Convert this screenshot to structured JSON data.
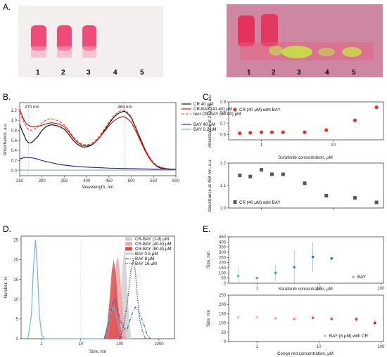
{
  "panels": {
    "A": {
      "letter": "A.",
      "left_gel": {
        "lanes": [
          "1",
          "2",
          "3",
          "4",
          "5"
        ],
        "colors": {
          "background": "#f2eeee",
          "band": "#f0386c"
        }
      },
      "right_gel": {
        "lanes": [
          "1",
          "2",
          "3",
          "4",
          "5"
        ],
        "colors": {
          "background": "#d98fa8",
          "band": "#e8254f",
          "spot": "#c6e842"
        }
      }
    },
    "B": {
      "letter": "B.",
      "annotations": [
        "270 nm",
        "484 nm"
      ],
      "chart_data": {
        "type": "line",
        "xlabel": "Wavelength, nm",
        "ylabel": "Absorbance, a.u.",
        "xlim": [
          250,
          600
        ],
        "ylim": [
          -0.1,
          1.35
        ],
        "xticks": [
          "250",
          "300",
          "350",
          "400",
          "450",
          "500",
          "550",
          "600"
        ],
        "yticks": [
          "0.0",
          "0.2",
          "0.4",
          "0.6",
          "0.8",
          "1.0",
          "1.2"
        ],
        "series": [
          {
            "name": "CR 40 μM",
            "color": "#000000",
            "dash": "solid",
            "x": [
              250,
              255,
              260,
              265,
              270,
              275,
              280,
              290,
              300,
              310,
              320,
              330,
              340,
              350,
              360,
              370,
              380,
              390,
              400,
              410,
              420,
              430,
              440,
              450,
              460,
              470,
              480,
              484,
              490,
              500,
              510,
              520,
              530,
              540,
              550,
              560,
              570,
              580,
              590,
              600
            ],
            "y": [
              0.92,
              0.8,
              0.7,
              0.6,
              0.55,
              0.55,
              0.58,
              0.67,
              0.8,
              0.88,
              0.91,
              0.9,
              0.87,
              0.82,
              0.72,
              0.6,
              0.52,
              0.47,
              0.47,
              0.5,
              0.57,
              0.67,
              0.8,
              0.93,
              1.05,
              1.13,
              1.17,
              1.18,
              1.15,
              1.05,
              0.85,
              0.64,
              0.43,
              0.26,
              0.14,
              0.07,
              0.04,
              0.03,
              0.02,
              0.02
            ]
          },
          {
            "name": "CR-BAY (40-40) μM",
            "color": "#d00000",
            "dash": "solid",
            "x": [
              250,
              255,
              260,
              265,
              270,
              275,
              280,
              290,
              300,
              310,
              320,
              330,
              340,
              350,
              360,
              370,
              380,
              390,
              400,
              410,
              420,
              430,
              440,
              450,
              460,
              470,
              480,
              484,
              490,
              500,
              510,
              520,
              530,
              540,
              550,
              560,
              570,
              580,
              590,
              600
            ],
            "y": [
              1.22,
              1.1,
              1.0,
              0.93,
              0.9,
              0.88,
              0.87,
              0.88,
              0.9,
              0.93,
              0.95,
              0.94,
              0.92,
              0.87,
              0.77,
              0.65,
              0.56,
              0.5,
              0.49,
              0.51,
              0.57,
              0.67,
              0.78,
              0.89,
              0.98,
              1.04,
              1.07,
              1.07,
              1.04,
              0.96,
              0.79,
              0.6,
              0.41,
              0.25,
              0.14,
              0.08,
              0.05,
              0.04,
              0.03,
              0.03
            ]
          },
          {
            "name": "teor CR-BAY (40-40) μM",
            "color": "#e8452a",
            "dash": "dashed",
            "x": [
              250,
              255,
              260,
              265,
              270,
              275,
              280,
              290,
              300,
              310,
              320,
              330,
              340,
              350,
              360,
              370,
              380,
              390,
              400,
              410,
              420,
              430,
              440,
              450,
              460,
              470,
              480,
              484,
              490,
              500,
              510,
              520,
              530,
              540,
              550,
              560,
              570,
              580,
              590,
              600
            ],
            "y": [
              1.16,
              1.05,
              0.95,
              0.86,
              0.81,
              0.8,
              0.81,
              0.86,
              0.95,
              1.01,
              1.03,
              1.01,
              0.97,
              0.91,
              0.8,
              0.67,
              0.58,
              0.52,
              0.51,
              0.53,
              0.6,
              0.7,
              0.83,
              0.96,
              1.08,
              1.16,
              1.2,
              1.2,
              1.17,
              1.07,
              0.87,
              0.66,
              0.45,
              0.28,
              0.16,
              0.09,
              0.06,
              0.04,
              0.03,
              0.03
            ]
          },
          {
            "name": "BAY 40 μM",
            "color": "#1a1aa8",
            "dash": "solid",
            "x": [
              250,
              260,
              270,
              280,
              290,
              300,
              320,
              340,
              360,
              380,
              400,
              450,
              500,
              550,
              600
            ],
            "y": [
              0.23,
              0.26,
              0.26,
              0.25,
              0.23,
              0.2,
              0.16,
              0.12,
              0.1,
              0.08,
              0.07,
              0.05,
              0.04,
              0.03,
              0.03
            ]
          },
          {
            "name": "BAY 0.2 μM",
            "color": "#7da6d6",
            "dash": "solid",
            "x": [
              250,
              300,
              400,
              500,
              600
            ],
            "y": [
              0.01,
              0.01,
              0.01,
              0.01,
              0.01
            ]
          }
        ]
      }
    },
    "C": {
      "letter": "C.",
      "xlabel": "Sorafenib concentration, μM",
      "x_tick_labels": [
        "1",
        "10"
      ],
      "chart_data": [
        {
          "type": "scatter",
          "ylabel": "Absorbance at 270 nm, a.u.",
          "ylim": [
            0.55,
            0.9
          ],
          "yticks": [
            "0.6",
            "0.7",
            "0.8",
            "0.9"
          ],
          "xscale": "log",
          "xlim": [
            0.35,
            50
          ],
          "series": [
            {
              "name": "CR (40 μM) with BAY",
              "color": "#e8302a",
              "x": [
                0.5,
                0.7,
                1,
                1.4,
                2,
                4,
                8,
                20,
                40
              ],
              "y": [
                0.61,
                0.615,
                0.62,
                0.62,
                0.62,
                0.62,
                0.64,
                0.73,
                0.85
              ]
            }
          ]
        },
        {
          "type": "scatter",
          "ylabel": "Absorbance at 484 nm, a.u.",
          "ylim": [
            1.0,
            1.2
          ],
          "yticks": [
            "1.0",
            "1.1",
            "1.2"
          ],
          "xscale": "log",
          "xlim": [
            0.35,
            50
          ],
          "series": [
            {
              "name": "CR (40 μM) with BAY",
              "color": "#555555",
              "x": [
                0.5,
                0.7,
                1,
                1.4,
                2,
                4,
                8,
                20,
                40
              ],
              "y": [
                1.145,
                1.14,
                1.17,
                1.15,
                1.15,
                1.11,
                1.055,
                1.045,
                1.025
              ]
            }
          ]
        }
      ]
    },
    "D": {
      "letter": "D.",
      "chart_data": {
        "type": "line",
        "xlabel": "Size, nm",
        "ylabel": "Number, %",
        "xscale": "log",
        "xlim": [
          0.3,
          2500
        ],
        "ylim": [
          0,
          26
        ],
        "xticks": [
          "1",
          "10",
          "100",
          "1000"
        ],
        "yticks": [
          "0",
          "5",
          "10",
          "15",
          "20",
          "25"
        ],
        "series": [
          {
            "name": "CR-BAY (1-8) μM",
            "color": "#cfcfcf",
            "fill": true,
            "x": [
              70,
              85,
              100,
              115,
              130,
              145,
              160,
              180,
              200
            ],
            "y": [
              0,
              3,
              9,
              17,
              23,
              19,
              10,
              3,
              0
            ]
          },
          {
            "name": "CR-BAY (40-8) μM",
            "color": "#f0a4a4",
            "fill": true,
            "x": [
              50,
              60,
              70,
              80,
              90,
              100,
              115,
              130,
              150
            ],
            "y": [
              0,
              4,
              11,
              19,
              21,
              17,
              9,
              3,
              0
            ]
          },
          {
            "name": "CR-BAY (80-8) μM",
            "color": "#e24a4a",
            "fill": true,
            "x": [
              40,
              48,
              55,
              62,
              70,
              78,
              88,
              100,
              115
            ],
            "y": [
              0,
              4,
              10,
              17,
              20,
              17,
              10,
              4,
              0
            ]
          },
          {
            "name": "BAY 0.5 μM",
            "color": "#6ab4e0",
            "dash": "solid",
            "x": [
              0.45,
              0.55,
              0.62,
              0.7,
              0.78,
              0.88,
              1.0,
              1.2,
              40,
              50,
              60,
              70,
              80,
              90,
              100,
              120
            ],
            "y": [
              0,
              6,
              18,
              25,
              18,
              6,
              1,
              0,
              0,
              4,
              7,
              8,
              6,
              4,
              2,
              0
            ]
          },
          {
            "name": "BAY 8 μM",
            "color": "#1f78b4",
            "dash": "dashdot",
            "x": [
              40,
              55,
              65,
              75,
              85,
              100,
              120,
              150,
              200,
              250,
              300,
              400,
              500,
              600
            ],
            "y": [
              0,
              5,
              9,
              10,
              8,
              5,
              3,
              2,
              6,
              8,
              7,
              4,
              1,
              0
            ]
          },
          {
            "name": "BAY 16 μM",
            "color": "#1a3a8c",
            "dash": "dotted",
            "x": [
              100,
              130,
              160,
              190,
              220,
              250,
              280,
              320,
              380,
              450,
              500
            ],
            "y": [
              0,
              4,
              10,
              17,
              20,
              17,
              11,
              5,
              2,
              0,
              0
            ]
          }
        ]
      }
    },
    "E": {
      "letter": "E.",
      "top_xlabel": "Sorafenib concentration, μM",
      "bottom_xlabel": "Congo red concentration, μM",
      "x_tick_labels": [
        "1",
        "10",
        "100"
      ],
      "chart_data": [
        {
          "type": "scatter",
          "ylabel": "Size, nm",
          "xscale": "log",
          "xlim": [
            0.35,
            110
          ],
          "ylim": [
            0,
            450
          ],
          "yticks": [
            "0",
            "50",
            "100",
            "150",
            "200",
            "250",
            "300",
            "350",
            "400",
            "450"
          ],
          "series": [
            {
              "name": "BAY",
              "color": "#2166ac",
              "x": [
                0.5,
                1,
                2,
                4,
                8,
                16
              ],
              "y": [
                70,
                50,
                100,
                155,
                255,
                240
              ],
              "err": [
                95,
                10,
                75,
                165,
                145,
                12
              ]
            }
          ]
        },
        {
          "type": "scatter",
          "ylabel": "Size, nm",
          "xscale": "log",
          "xlim": [
            0.35,
            110
          ],
          "ylim": [
            0,
            250
          ],
          "yticks": [
            "0",
            "50",
            "100",
            "150",
            "200",
            "250"
          ],
          "series": [
            {
              "name": "BAY (8 μM) with CR",
              "color": "#c0392b",
              "x": [
                0.5,
                1,
                2,
                4,
                8,
                16,
                40,
                80
              ],
              "y": [
                130,
                130,
                125,
                122,
                128,
                122,
                120,
                100
              ],
              "err": [
                4,
                4,
                5,
                5,
                12,
                8,
                12,
                18
              ]
            }
          ]
        }
      ]
    }
  }
}
